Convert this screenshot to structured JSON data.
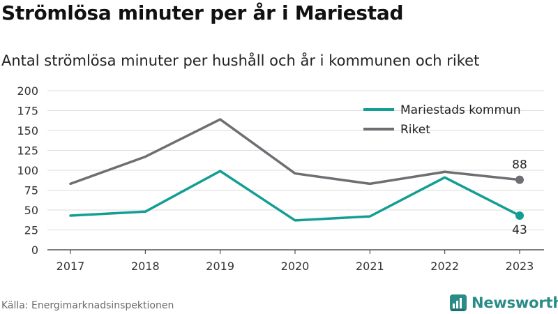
{
  "title": "Strömlösa minuter per år i Mariestad",
  "subtitle": "Antal strömlösa minuter per hushåll och år i kommunen och riket",
  "source": "Källa: Energimarknadsinspektionen",
  "brand": {
    "name": "Newsworthy",
    "color": "#2a8c86",
    "icon": "bar-chart-logo-icon"
  },
  "chart_data": {
    "type": "line",
    "title": "Strömlösa minuter per år i Mariestad",
    "subtitle": "Antal strömlösa minuter per hushåll och år i kommunen och riket",
    "xlabel": "",
    "ylabel": "",
    "categories": [
      "2017",
      "2018",
      "2019",
      "2020",
      "2021",
      "2022",
      "2023"
    ],
    "ylim": [
      0,
      200
    ],
    "yticks": [
      0,
      25,
      50,
      75,
      100,
      125,
      150,
      175,
      200
    ],
    "grid": true,
    "legend_position": "top-right",
    "series": [
      {
        "name": "Mariestads kommun",
        "color": "#139e94",
        "values": [
          43,
          48,
          99,
          37,
          42,
          91,
          43
        ],
        "end_label": "43"
      },
      {
        "name": "Riket",
        "color": "#6e6e73",
        "values": [
          83,
          117,
          164,
          96,
          83,
          98,
          88
        ],
        "end_label": "88"
      }
    ]
  }
}
